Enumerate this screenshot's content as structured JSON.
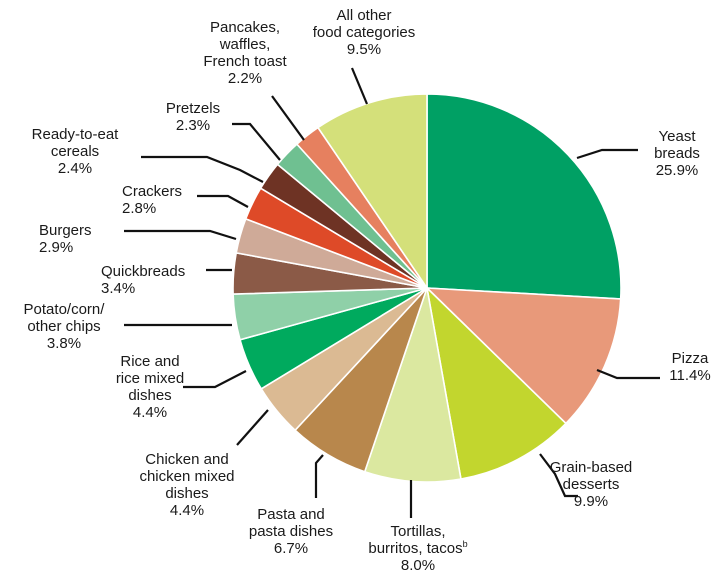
{
  "chart_data": {
    "type": "pie",
    "slices": [
      {
        "label": [
          "Yeast",
          "breads"
        ],
        "value": 25.9,
        "pct_label": "25.9%",
        "color": "#00a064"
      },
      {
        "label": [
          "Pizza"
        ],
        "value": 11.4,
        "pct_label": "11.4%",
        "color": "#e8997a"
      },
      {
        "label": [
          "Grain-based",
          "desserts"
        ],
        "value": 9.9,
        "pct_label": "9.9%",
        "color": "#c2d62e"
      },
      {
        "label": [
          "Tortillas,",
          "burritos, tacos"
        ],
        "superscript": "b",
        "value": 8.0,
        "pct_label": "8.0%",
        "color": "#dbe8a0"
      },
      {
        "label": [
          "Pasta and",
          "pasta dishes"
        ],
        "value": 6.7,
        "pct_label": "6.7%",
        "color": "#b8874c"
      },
      {
        "label": [
          "Chicken and",
          "chicken mixed",
          "dishes"
        ],
        "value": 4.4,
        "pct_label": "4.4%",
        "color": "#dbba93"
      },
      {
        "label": [
          "Rice and",
          "rice mixed",
          "dishes"
        ],
        "value": 4.4,
        "pct_label": "4.4%",
        "color": "#00aa5e"
      },
      {
        "label": [
          "Potato/corn/",
          "other chips"
        ],
        "value": 3.8,
        "pct_label": "3.8%",
        "color": "#8fd0a8"
      },
      {
        "label": [
          "Quickbreads"
        ],
        "value": 3.4,
        "pct_label": "3.4%",
        "color": "#8b5a47"
      },
      {
        "label": [
          "Burgers"
        ],
        "value": 2.9,
        "pct_label": "2.9%",
        "color": "#cfaa98"
      },
      {
        "label": [
          "Crackers"
        ],
        "value": 2.8,
        "pct_label": "2.8%",
        "color": "#de4a28"
      },
      {
        "label": [
          "Ready-to-eat",
          "cereals"
        ],
        "value": 2.4,
        "pct_label": "2.4%",
        "color": "#6e3324"
      },
      {
        "label": [
          "Pretzels"
        ],
        "value": 2.3,
        "pct_label": "2.3%",
        "color": "#6fc091"
      },
      {
        "label": [
          "Pancakes,",
          "waffles,",
          "French toast"
        ],
        "value": 2.2,
        "pct_label": "2.2%",
        "color": "#e6805f"
      },
      {
        "label": [
          "All other",
          "food categories"
        ],
        "value": 9.5,
        "pct_label": "9.5%",
        "color": "#d4e07a"
      }
    ]
  }
}
